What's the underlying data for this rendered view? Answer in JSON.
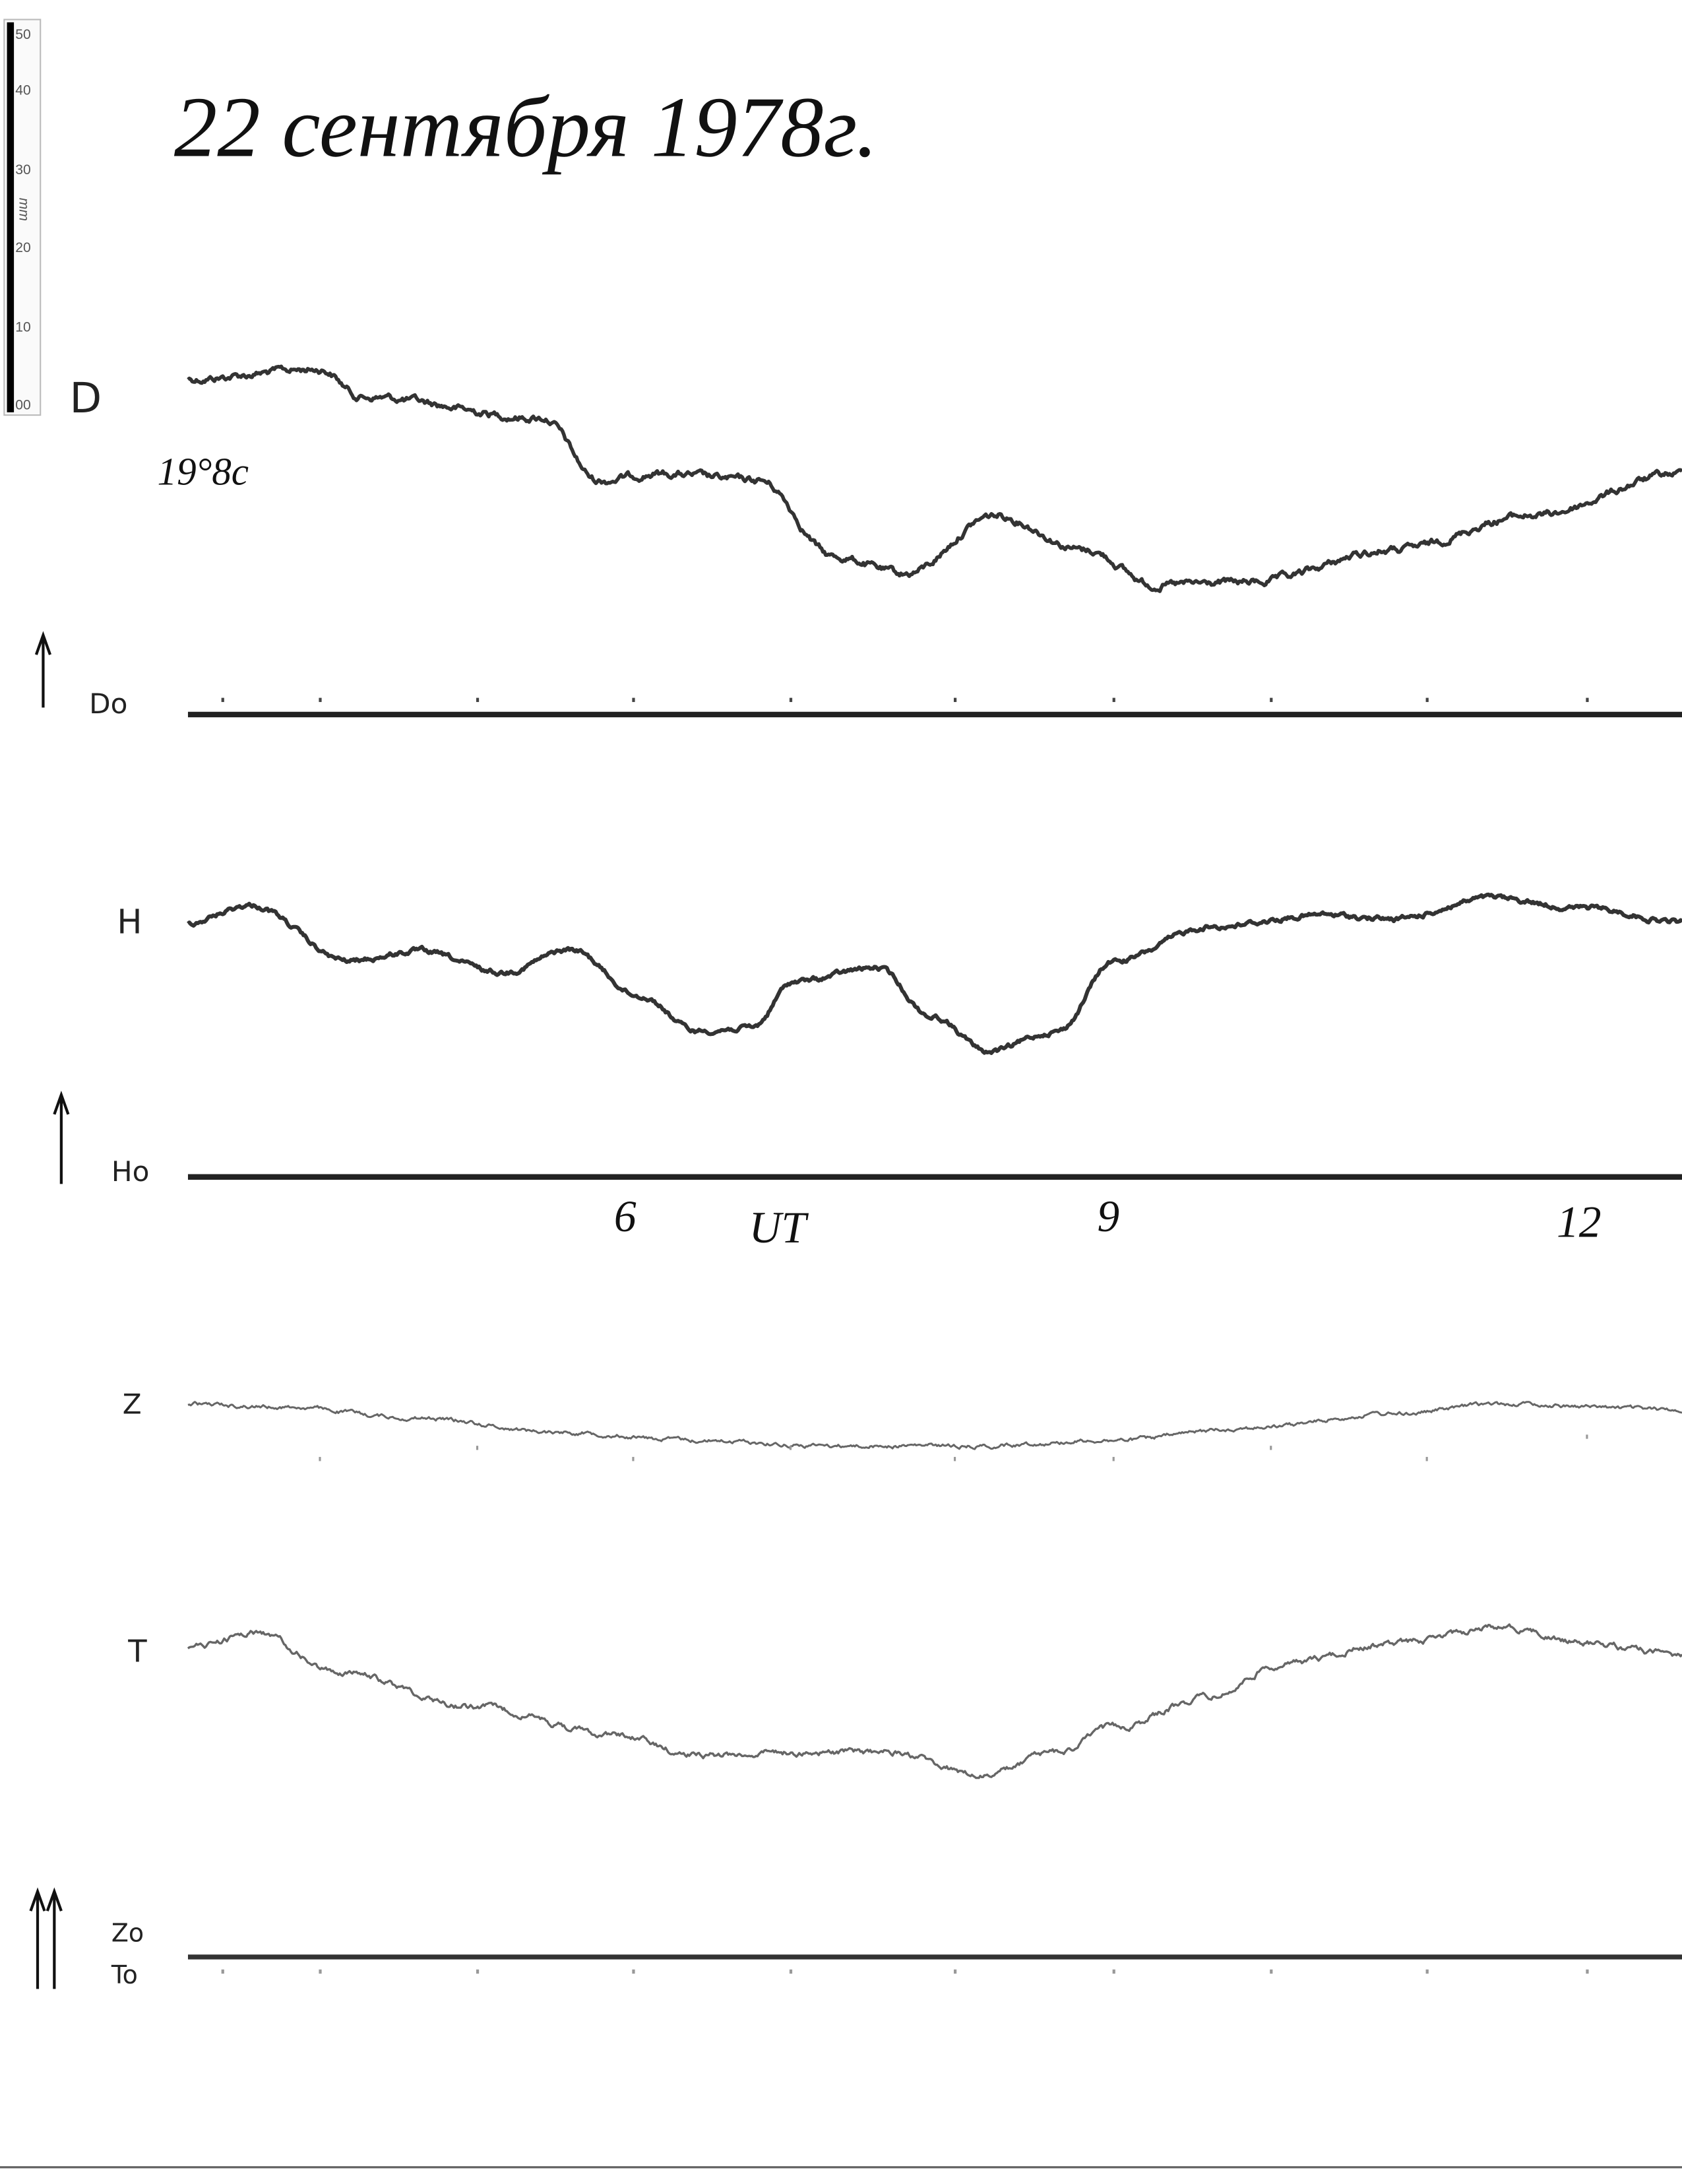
{
  "header": {
    "title": "22 сентября 1978г.",
    "scale": {
      "unit": "mm",
      "ticks": [
        "50",
        "40",
        "30",
        "20",
        "10",
        "00"
      ]
    }
  },
  "traces": [
    {
      "label": "D",
      "baseline_label": "Do",
      "base_value": "19°8c"
    },
    {
      "label": "H",
      "baseline_label": "Ho"
    },
    {
      "label": "Z",
      "baseline_label": "Zo"
    },
    {
      "label": "T",
      "baseline_label": "To"
    }
  ],
  "time_axis": {
    "labels": [
      "6",
      "UT",
      "9",
      "12"
    ]
  }
}
